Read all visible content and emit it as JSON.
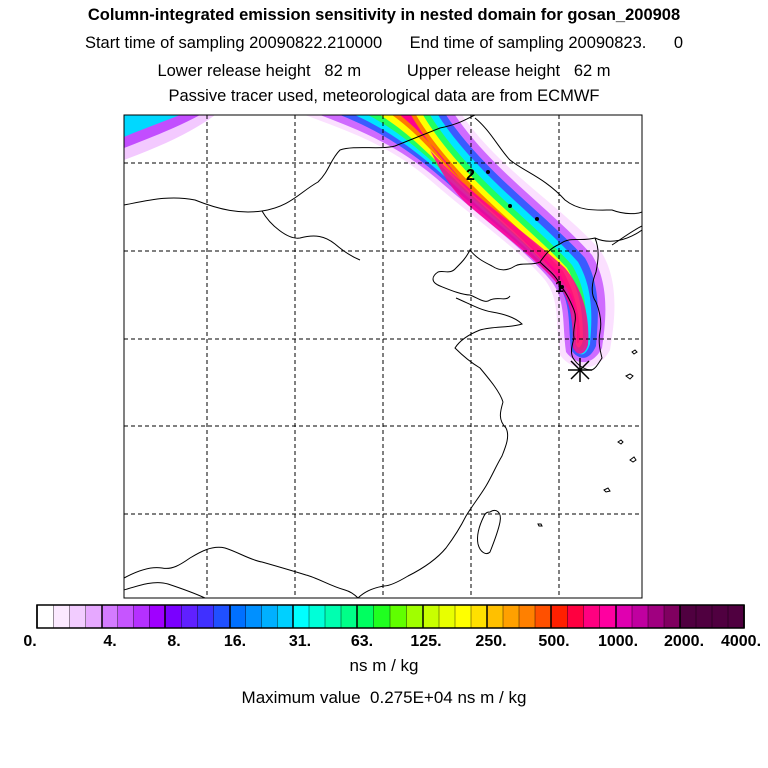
{
  "title": {
    "main": "Column-integrated emission sensitivity in nested domain for gosan_200908",
    "sampling": "Start time of sampling 20090822.210000      End time of sampling 20090823.      0",
    "release": "Lower release height   82 m          Upper release height   62 m",
    "tracer": "Passive tracer used, meteorological data are from ECMWF"
  },
  "colorbar": {
    "tick_labels": [
      "0.",
      "4.",
      "8.",
      "16.",
      "31.",
      "63.",
      "125.",
      "250.",
      "500.",
      "1000.",
      "2000.",
      "4000."
    ],
    "colors": [
      "#ffffff",
      "#fbe9ff",
      "#f2ccff",
      "#e6a8ff",
      "#d47bff",
      "#c655ff",
      "#b530ff",
      "#a000ff",
      "#7a00ff",
      "#6020ff",
      "#4030ff",
      "#2050ff",
      "#0070ff",
      "#0090ff",
      "#00b0ff",
      "#00d0ff",
      "#00ffff",
      "#00ffd8",
      "#00ffb0",
      "#00ff88",
      "#00ff60",
      "#20ff20",
      "#60ff00",
      "#a0ff00",
      "#c8ff00",
      "#e8ff00",
      "#ffff00",
      "#ffe000",
      "#ffc000",
      "#ffa000",
      "#ff8000",
      "#ff5000",
      "#ff2000",
      "#ff0040",
      "#ff0080",
      "#ff00a0",
      "#e000b0",
      "#c000a0",
      "#a00080",
      "#800060",
      "#500040"
    ],
    "units": "ns m / kg",
    "max_value_text": "Maximum value  0.275E+04 ns m / kg"
  },
  "map": {
    "receptor_marker": "asterisk-receptor",
    "age_labels": [
      "2",
      "1"
    ],
    "plume_color_stops": [
      "#ffeeff",
      "#d070ff",
      "#5050ff",
      "#00e0ff",
      "#00ff80",
      "#ffff00",
      "#ff8000",
      "#ff0090"
    ]
  }
}
